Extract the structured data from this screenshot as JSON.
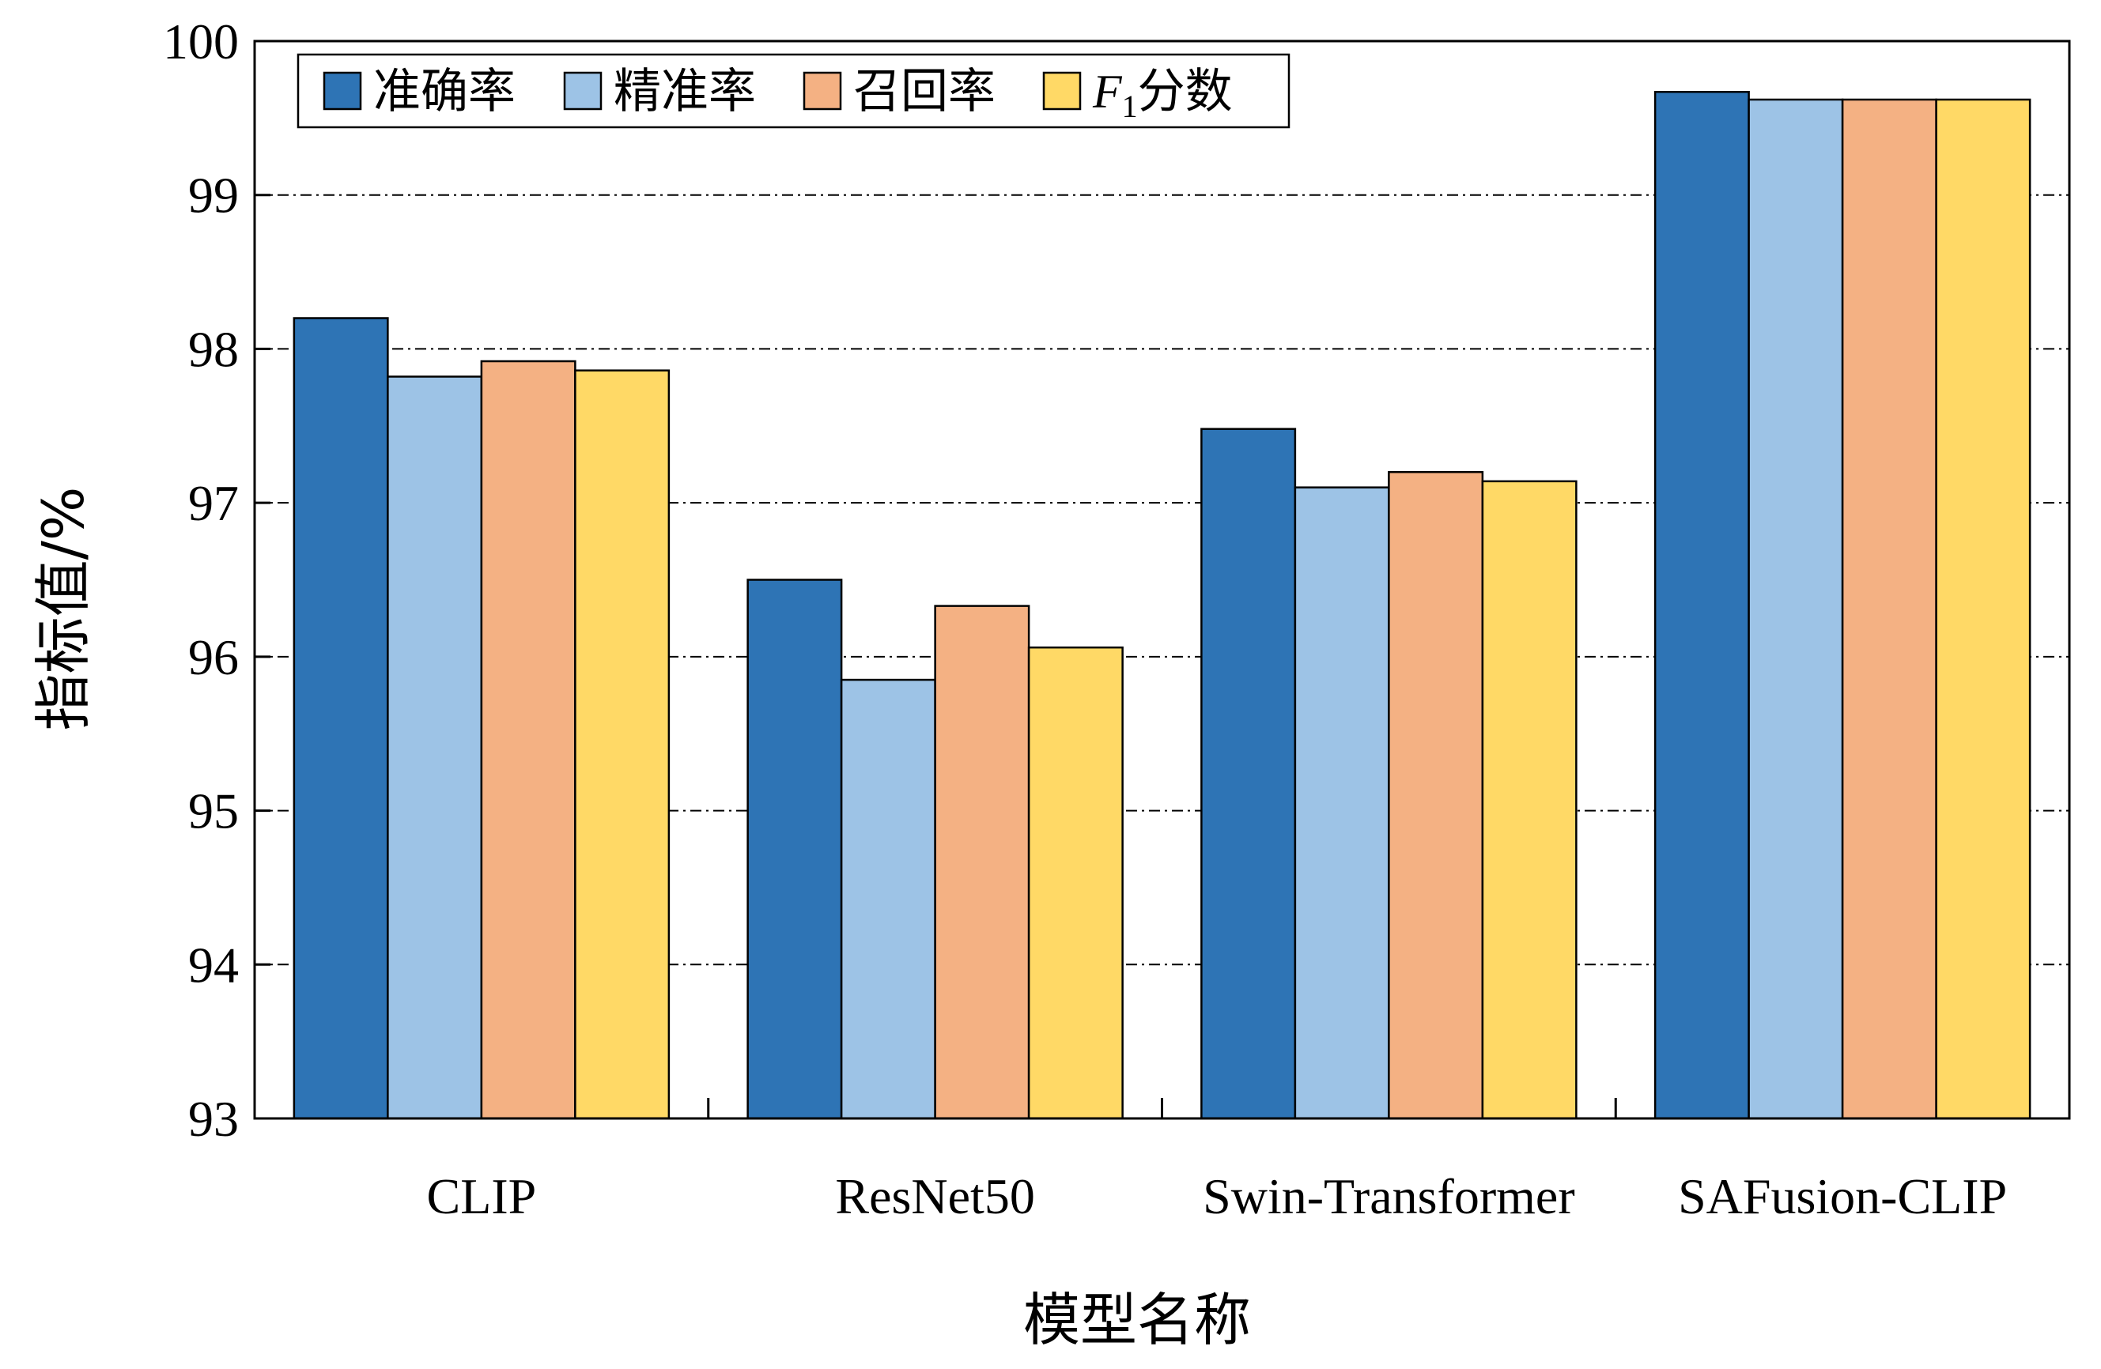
{
  "chart_data": {
    "type": "bar",
    "categories": [
      "CLIP",
      "ResNet50",
      "Swin-Transformer",
      "SAFusion-CLIP"
    ],
    "series": [
      {
        "name": "准确率",
        "color": "#2E74B5",
        "values": [
          98.2,
          96.5,
          97.48,
          99.67
        ]
      },
      {
        "name": "精准率",
        "color": "#9DC3E6",
        "values": [
          97.82,
          95.85,
          97.1,
          99.62
        ]
      },
      {
        "name": "召回率",
        "color": "#F4B183",
        "values": [
          97.92,
          96.33,
          97.2,
          99.62
        ]
      },
      {
        "name": "分数",
        "name_prefix": "F",
        "name_subscript": "1",
        "color": "#FFD966",
        "values": [
          97.86,
          96.06,
          97.14,
          99.62
        ]
      }
    ],
    "title": "",
    "xlabel": "模型名称",
    "ylabel": "指标值/%",
    "ylim": [
      93,
      100
    ],
    "yticks": [
      93,
      94,
      95,
      96,
      97,
      98,
      99,
      100
    ],
    "grid": "dash-dot horizontal",
    "legend_position": "top-left"
  }
}
